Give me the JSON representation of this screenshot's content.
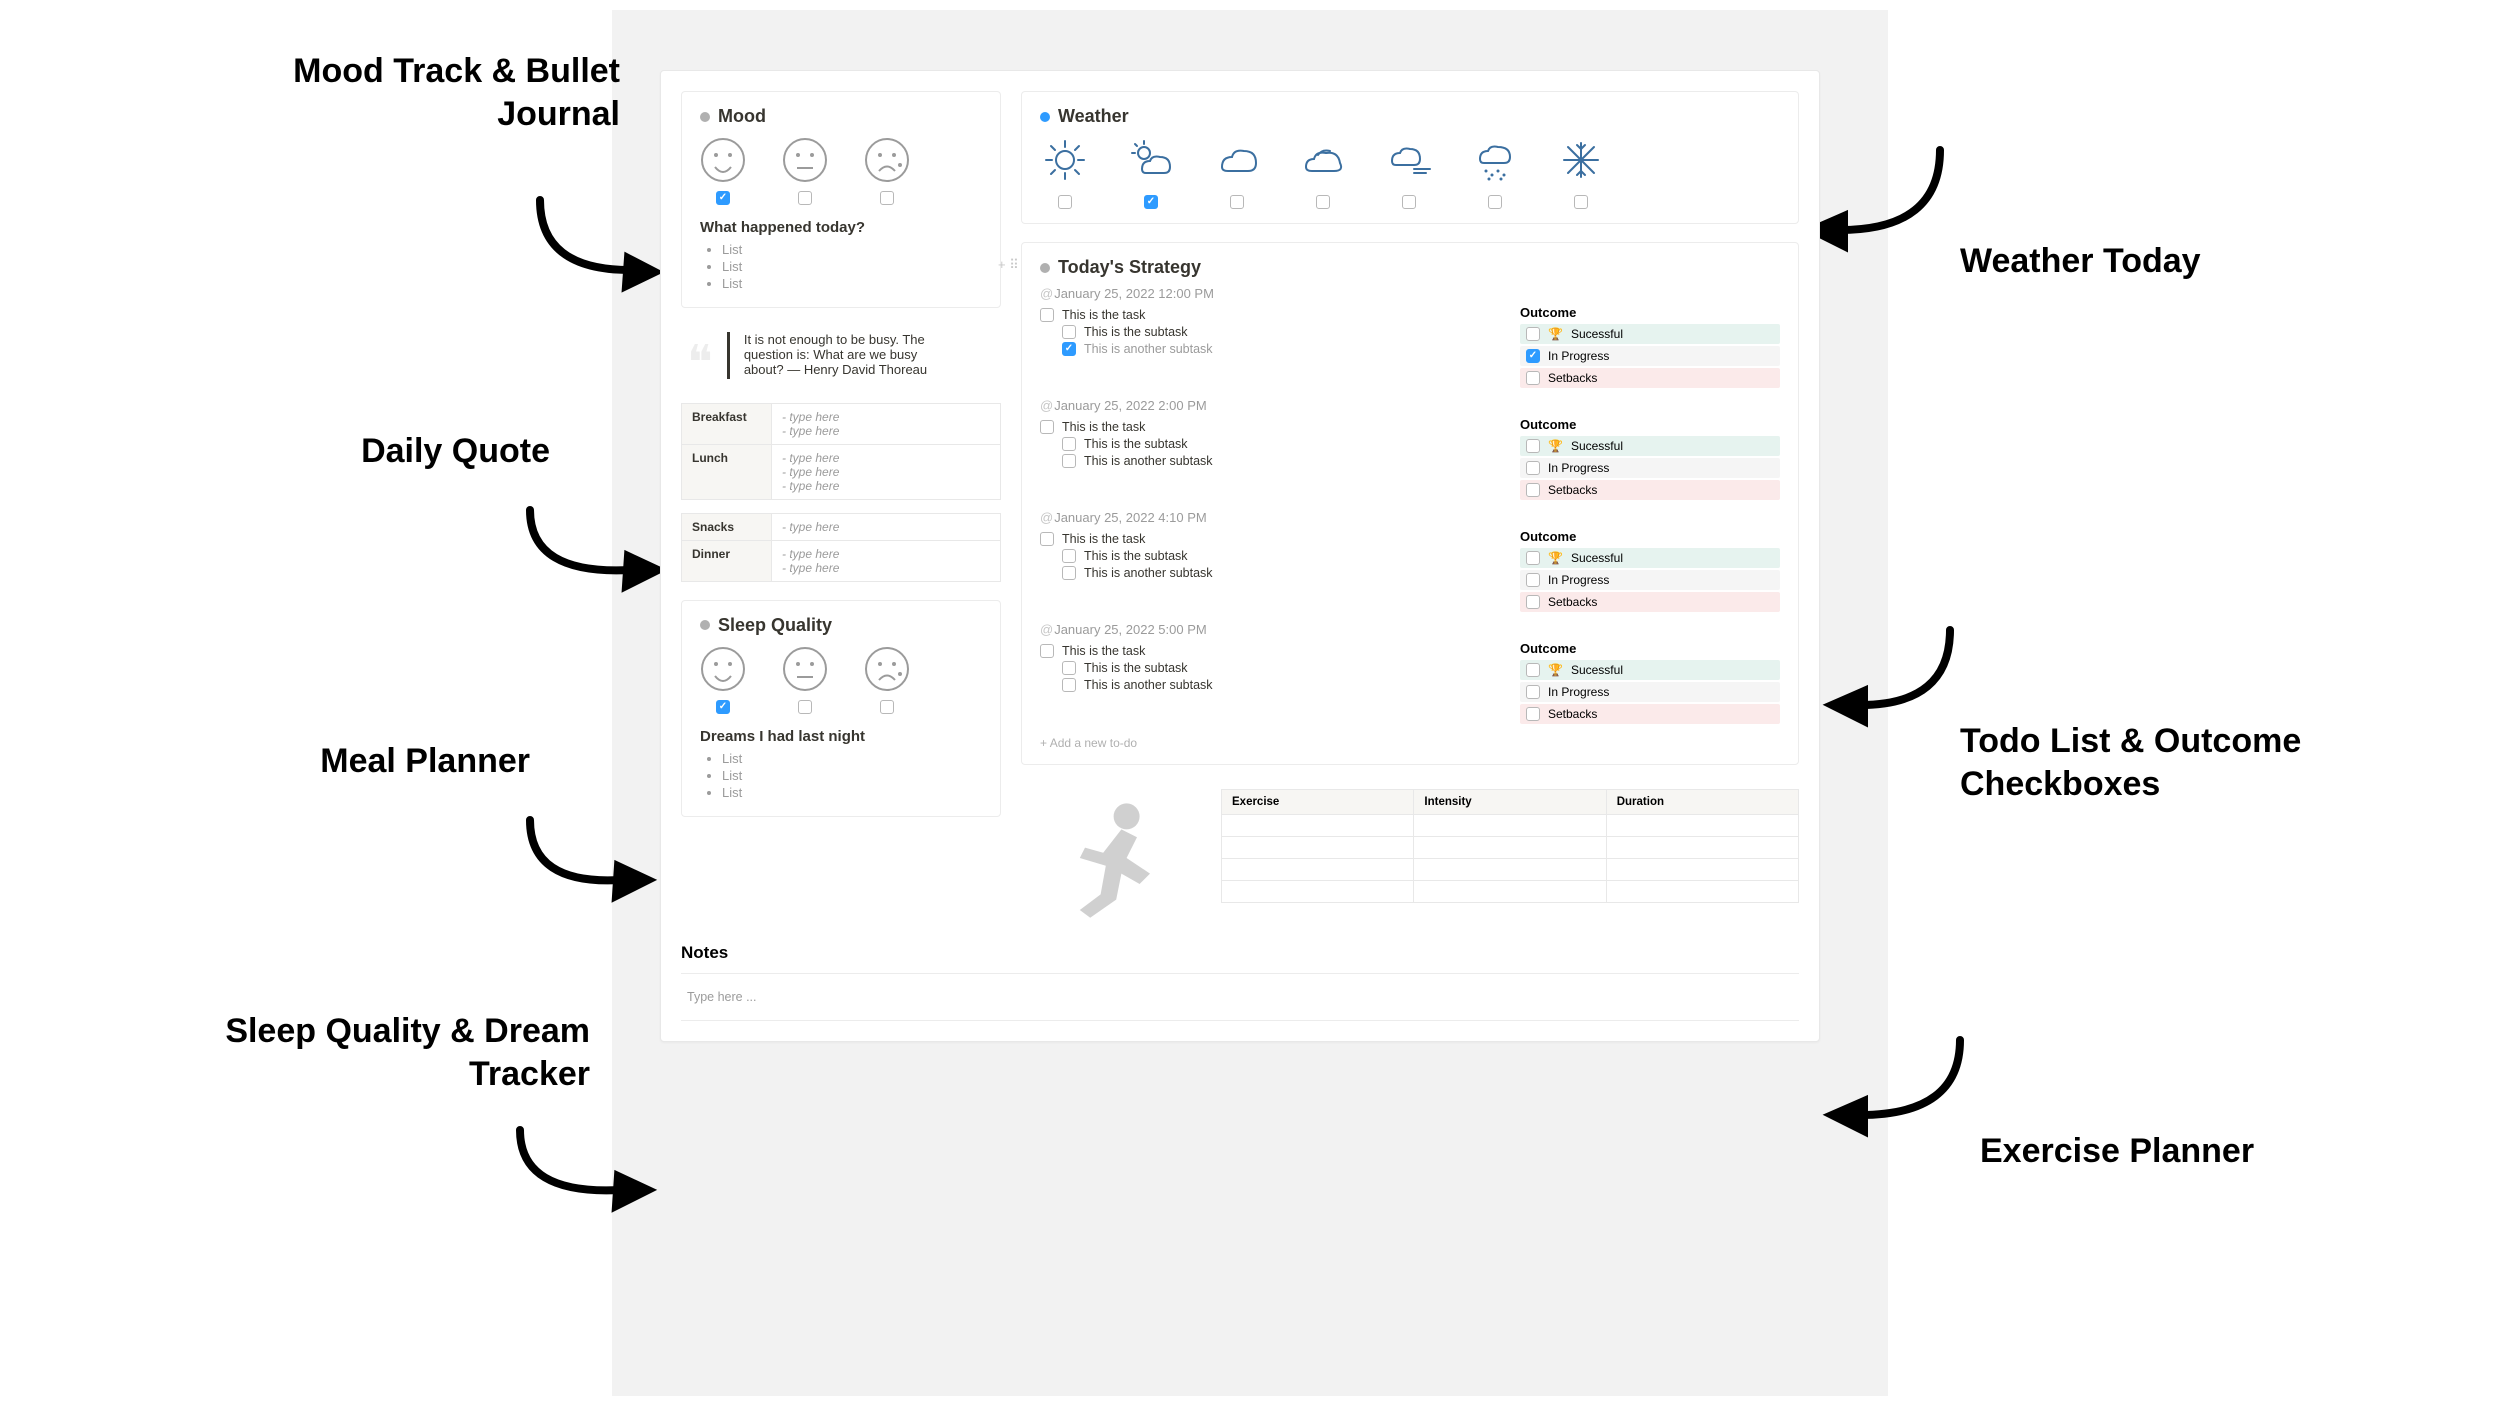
{
  "callouts": {
    "mood": "Mood Track\n& Bullet Journal",
    "quote": "Daily Quote",
    "meal": "Meal Planner",
    "sleep": "Sleep Quality\n& Dream Tracker",
    "weather": "Weather\nToday",
    "todo": "Todo List\n& Outcome\nCheckboxes",
    "exercise": "Exercise\nPlanner"
  },
  "mood": {
    "title": "Mood",
    "faces": [
      {
        "type": "happy",
        "checked": true
      },
      {
        "type": "neutral",
        "checked": false
      },
      {
        "type": "sad",
        "checked": false
      }
    ],
    "journal_head": "What happened today?",
    "journal_items": [
      "List",
      "List",
      "List"
    ]
  },
  "weather": {
    "title": "Weather",
    "icons": [
      {
        "name": "sunny",
        "checked": false
      },
      {
        "name": "partly-cloudy",
        "checked": true
      },
      {
        "name": "cloudy",
        "checked": false
      },
      {
        "name": "overcast",
        "checked": false
      },
      {
        "name": "windy",
        "checked": false
      },
      {
        "name": "rainy",
        "checked": false
      },
      {
        "name": "snowy",
        "checked": false
      }
    ],
    "icon_stroke": "#3b6fa0"
  },
  "quote": {
    "text": "It is not enough to be busy. The question is: What are we busy about? — Henry David Thoreau"
  },
  "meals": {
    "rows": [
      {
        "label": "Breakfast",
        "hints": [
          "- type here",
          "- type here"
        ]
      },
      {
        "label": "Lunch",
        "hints": [
          "- type here",
          "- type here",
          "- type here"
        ]
      },
      {
        "label": "Snacks",
        "hints": [
          "- type here"
        ]
      },
      {
        "label": "Dinner",
        "hints": [
          "- type here",
          "- type here"
        ]
      }
    ]
  },
  "sleep": {
    "title": "Sleep Quality",
    "faces": [
      {
        "type": "happy",
        "checked": true
      },
      {
        "type": "neutral",
        "checked": false
      },
      {
        "type": "sad",
        "checked": false
      }
    ],
    "dreams_head": "Dreams I had last night",
    "dreams_items": [
      "List",
      "List",
      "List"
    ]
  },
  "strategy": {
    "title": "Today's Strategy",
    "outcome_head": "Outcome",
    "outcomes": [
      {
        "label": "Sucessful",
        "class": "oc-success",
        "trophy": true
      },
      {
        "label": "In Progress",
        "class": "oc-progress",
        "trophy": false
      },
      {
        "label": "Setbacks",
        "class": "oc-setback",
        "trophy": false
      }
    ],
    "blocks": [
      {
        "time": "January 25, 2022 12:00 PM",
        "tasks": [
          {
            "text": "This is the task",
            "sub": false,
            "checked": false
          },
          {
            "text": "This is the subtask",
            "sub": true,
            "checked": false
          },
          {
            "text": "This is another subtask",
            "sub": true,
            "checked": true
          }
        ],
        "outcome_checked_index": 1
      },
      {
        "time": "January 25, 2022 2:00 PM",
        "tasks": [
          {
            "text": "This is the task",
            "sub": false,
            "checked": false
          },
          {
            "text": "This is the subtask",
            "sub": true,
            "checked": false
          },
          {
            "text": "This is another subtask",
            "sub": true,
            "checked": false
          }
        ],
        "outcome_checked_index": -1
      },
      {
        "time": "January 25, 2022 4:10 PM",
        "tasks": [
          {
            "text": "This is the task",
            "sub": false,
            "checked": false
          },
          {
            "text": "This is the subtask",
            "sub": true,
            "checked": false
          },
          {
            "text": "This is another subtask",
            "sub": true,
            "checked": false
          }
        ],
        "outcome_checked_index": -1
      },
      {
        "time": "January 25, 2022 5:00 PM",
        "tasks": [
          {
            "text": "This is the task",
            "sub": false,
            "checked": false
          },
          {
            "text": "This is the subtask",
            "sub": true,
            "checked": false
          },
          {
            "text": "This is another subtask",
            "sub": true,
            "checked": false
          }
        ],
        "outcome_checked_index": -1
      }
    ],
    "add_new": "Add a new to-do"
  },
  "exercise": {
    "columns": [
      "Exercise",
      "Intensity",
      "Duration"
    ],
    "rows": 4
  },
  "notes": {
    "title": "Notes",
    "placeholder": "Type here ..."
  },
  "colors": {
    "outline": "#9b9b9b",
    "accent": "#2e9bff",
    "success_bg": "#e6f3ef",
    "progress_bg": "#f5f5f5",
    "setback_bg": "#fbeaea",
    "label_grey": "#9b9b9b"
  }
}
